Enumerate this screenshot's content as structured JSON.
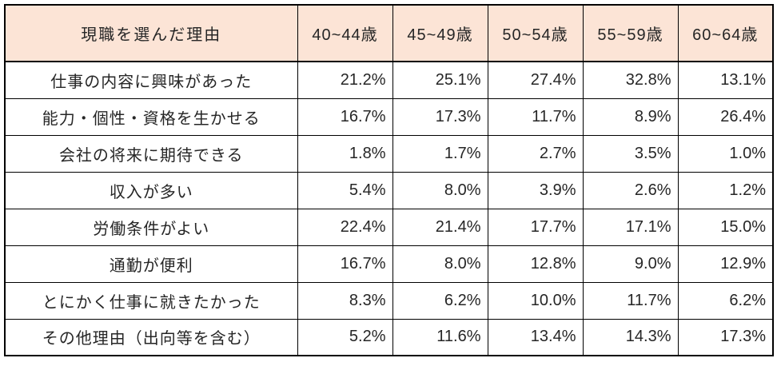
{
  "colors": {
    "header_bg": "#FCE4D6",
    "border": "#000000",
    "text": "#262626",
    "background": "#FFFFFF"
  },
  "table": {
    "title": "現職を選んだ理由",
    "columns": [
      "40~44歳",
      "45~49歳",
      "50~54歳",
      "55~59歳",
      "60~64歳"
    ],
    "rows": [
      {
        "label": "仕事の内容に興味があった",
        "values": [
          "21.2%",
          "25.1%",
          "27.4%",
          "32.8%",
          "13.1%"
        ]
      },
      {
        "label": "能力・個性・資格を生かせる",
        "values": [
          "16.7%",
          "17.3%",
          "11.7%",
          "8.9%",
          "26.4%"
        ]
      },
      {
        "label": "会社の将来に期待できる",
        "values": [
          "1.8%",
          "1.7%",
          "2.7%",
          "3.5%",
          "1.0%"
        ]
      },
      {
        "label": "収入が多い",
        "values": [
          "5.4%",
          "8.0%",
          "3.9%",
          "2.6%",
          "1.2%"
        ]
      },
      {
        "label": "労働条件がよい",
        "values": [
          "22.4%",
          "21.4%",
          "17.7%",
          "17.1%",
          "15.0%"
        ]
      },
      {
        "label": "通勤が便利",
        "values": [
          "16.7%",
          "8.0%",
          "12.8%",
          "9.0%",
          "12.9%"
        ]
      },
      {
        "label": "とにかく仕事に就きたかった",
        "values": [
          "8.3%",
          "6.2%",
          "10.0%",
          "11.7%",
          "6.2%"
        ]
      },
      {
        "label": "その他理由（出向等を含む）",
        "values": [
          "5.2%",
          "11.6%",
          "13.4%",
          "14.3%",
          "17.3%"
        ]
      }
    ]
  },
  "chart_data": {
    "type": "table",
    "title": "現職を選んだ理由",
    "categories": [
      "40~44歳",
      "45~49歳",
      "50~54歳",
      "55~59歳",
      "60~64歳"
    ],
    "unit": "%",
    "series": [
      {
        "name": "仕事の内容に興味があった",
        "values": [
          21.2,
          25.1,
          27.4,
          32.8,
          13.1
        ]
      },
      {
        "name": "能力・個性・資格を生かせる",
        "values": [
          16.7,
          17.3,
          11.7,
          8.9,
          26.4
        ]
      },
      {
        "name": "会社の将来に期待できる",
        "values": [
          1.8,
          1.7,
          2.7,
          3.5,
          1.0
        ]
      },
      {
        "name": "収入が多い",
        "values": [
          5.4,
          8.0,
          3.9,
          2.6,
          1.2
        ]
      },
      {
        "name": "労働条件がよい",
        "values": [
          22.4,
          21.4,
          17.7,
          17.1,
          15.0
        ]
      },
      {
        "name": "通勤が便利",
        "values": [
          16.7,
          8.0,
          12.8,
          9.0,
          12.9
        ]
      },
      {
        "name": "とにかく仕事に就きたかった",
        "values": [
          8.3,
          6.2,
          10.0,
          11.7,
          6.2
        ]
      },
      {
        "name": "その他理由（出向等を含む）",
        "values": [
          5.2,
          11.6,
          13.4,
          14.3,
          17.3
        ]
      }
    ]
  }
}
